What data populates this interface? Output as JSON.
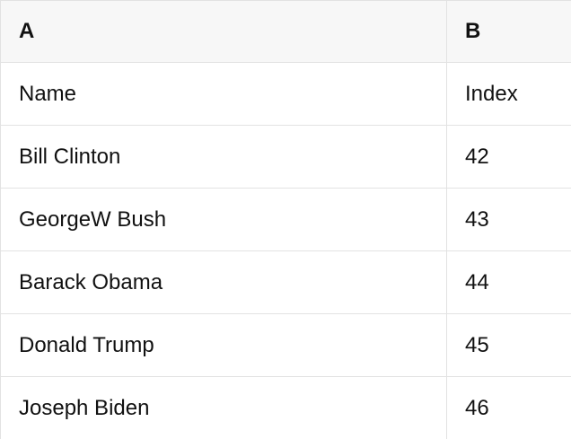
{
  "colors": {
    "header_bg": "#f7f7f7",
    "border": "#e2e2e2",
    "text": "#111111",
    "background": "#ffffff"
  },
  "table": {
    "column_headers": [
      "A",
      "B"
    ],
    "rows": [
      [
        "Name",
        "Index"
      ],
      [
        "Bill Clinton",
        "42"
      ],
      [
        "GeorgeW Bush",
        "43"
      ],
      [
        "Barack Obama",
        "44"
      ],
      [
        "Donald Trump",
        "45"
      ],
      [
        "Joseph Biden",
        "46"
      ]
    ]
  }
}
